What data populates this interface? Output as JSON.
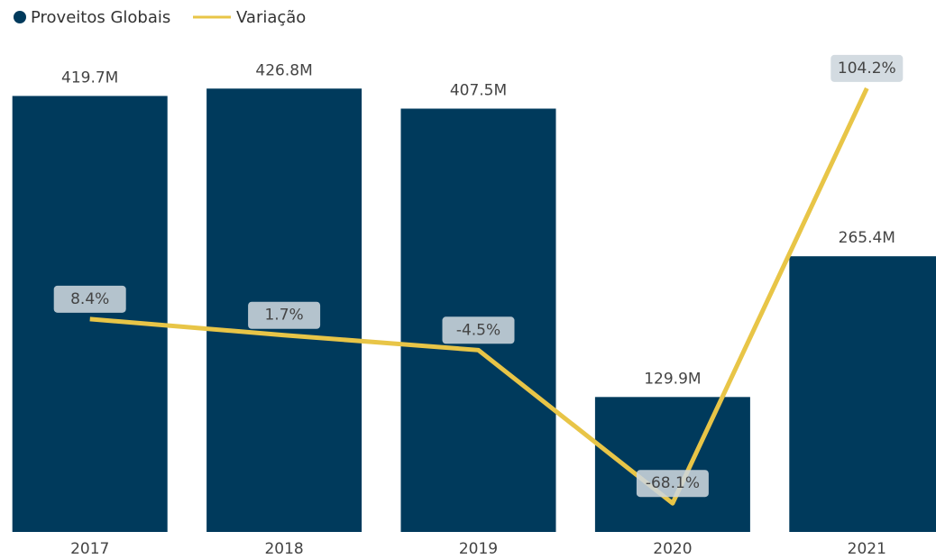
{
  "chart_data": {
    "type": "bar_line",
    "categories": [
      "2017",
      "2018",
      "2019",
      "2020",
      "2021"
    ],
    "series": [
      {
        "name": "Proveitos Globais",
        "color": "#003a5c",
        "type": "bar",
        "values": [
          419.7,
          426.8,
          407.5,
          129.9,
          265.4
        ],
        "value_labels": [
          "419.7M",
          "426.8M",
          "407.5M",
          "129.9M",
          "265.4M"
        ]
      },
      {
        "name": "Variação",
        "color": "#e8c547",
        "type": "line",
        "axis": "y2",
        "values": [
          8.4,
          1.7,
          -4.5,
          -68.1,
          104.2
        ],
        "value_labels": [
          "8.4%",
          "1.7%",
          "-4.5%",
          "-68.1%",
          "104.2%"
        ]
      }
    ],
    "ylim": [
      0,
      460
    ],
    "y2lim": [
      -80,
      118.4
    ],
    "legend": "top-left"
  }
}
